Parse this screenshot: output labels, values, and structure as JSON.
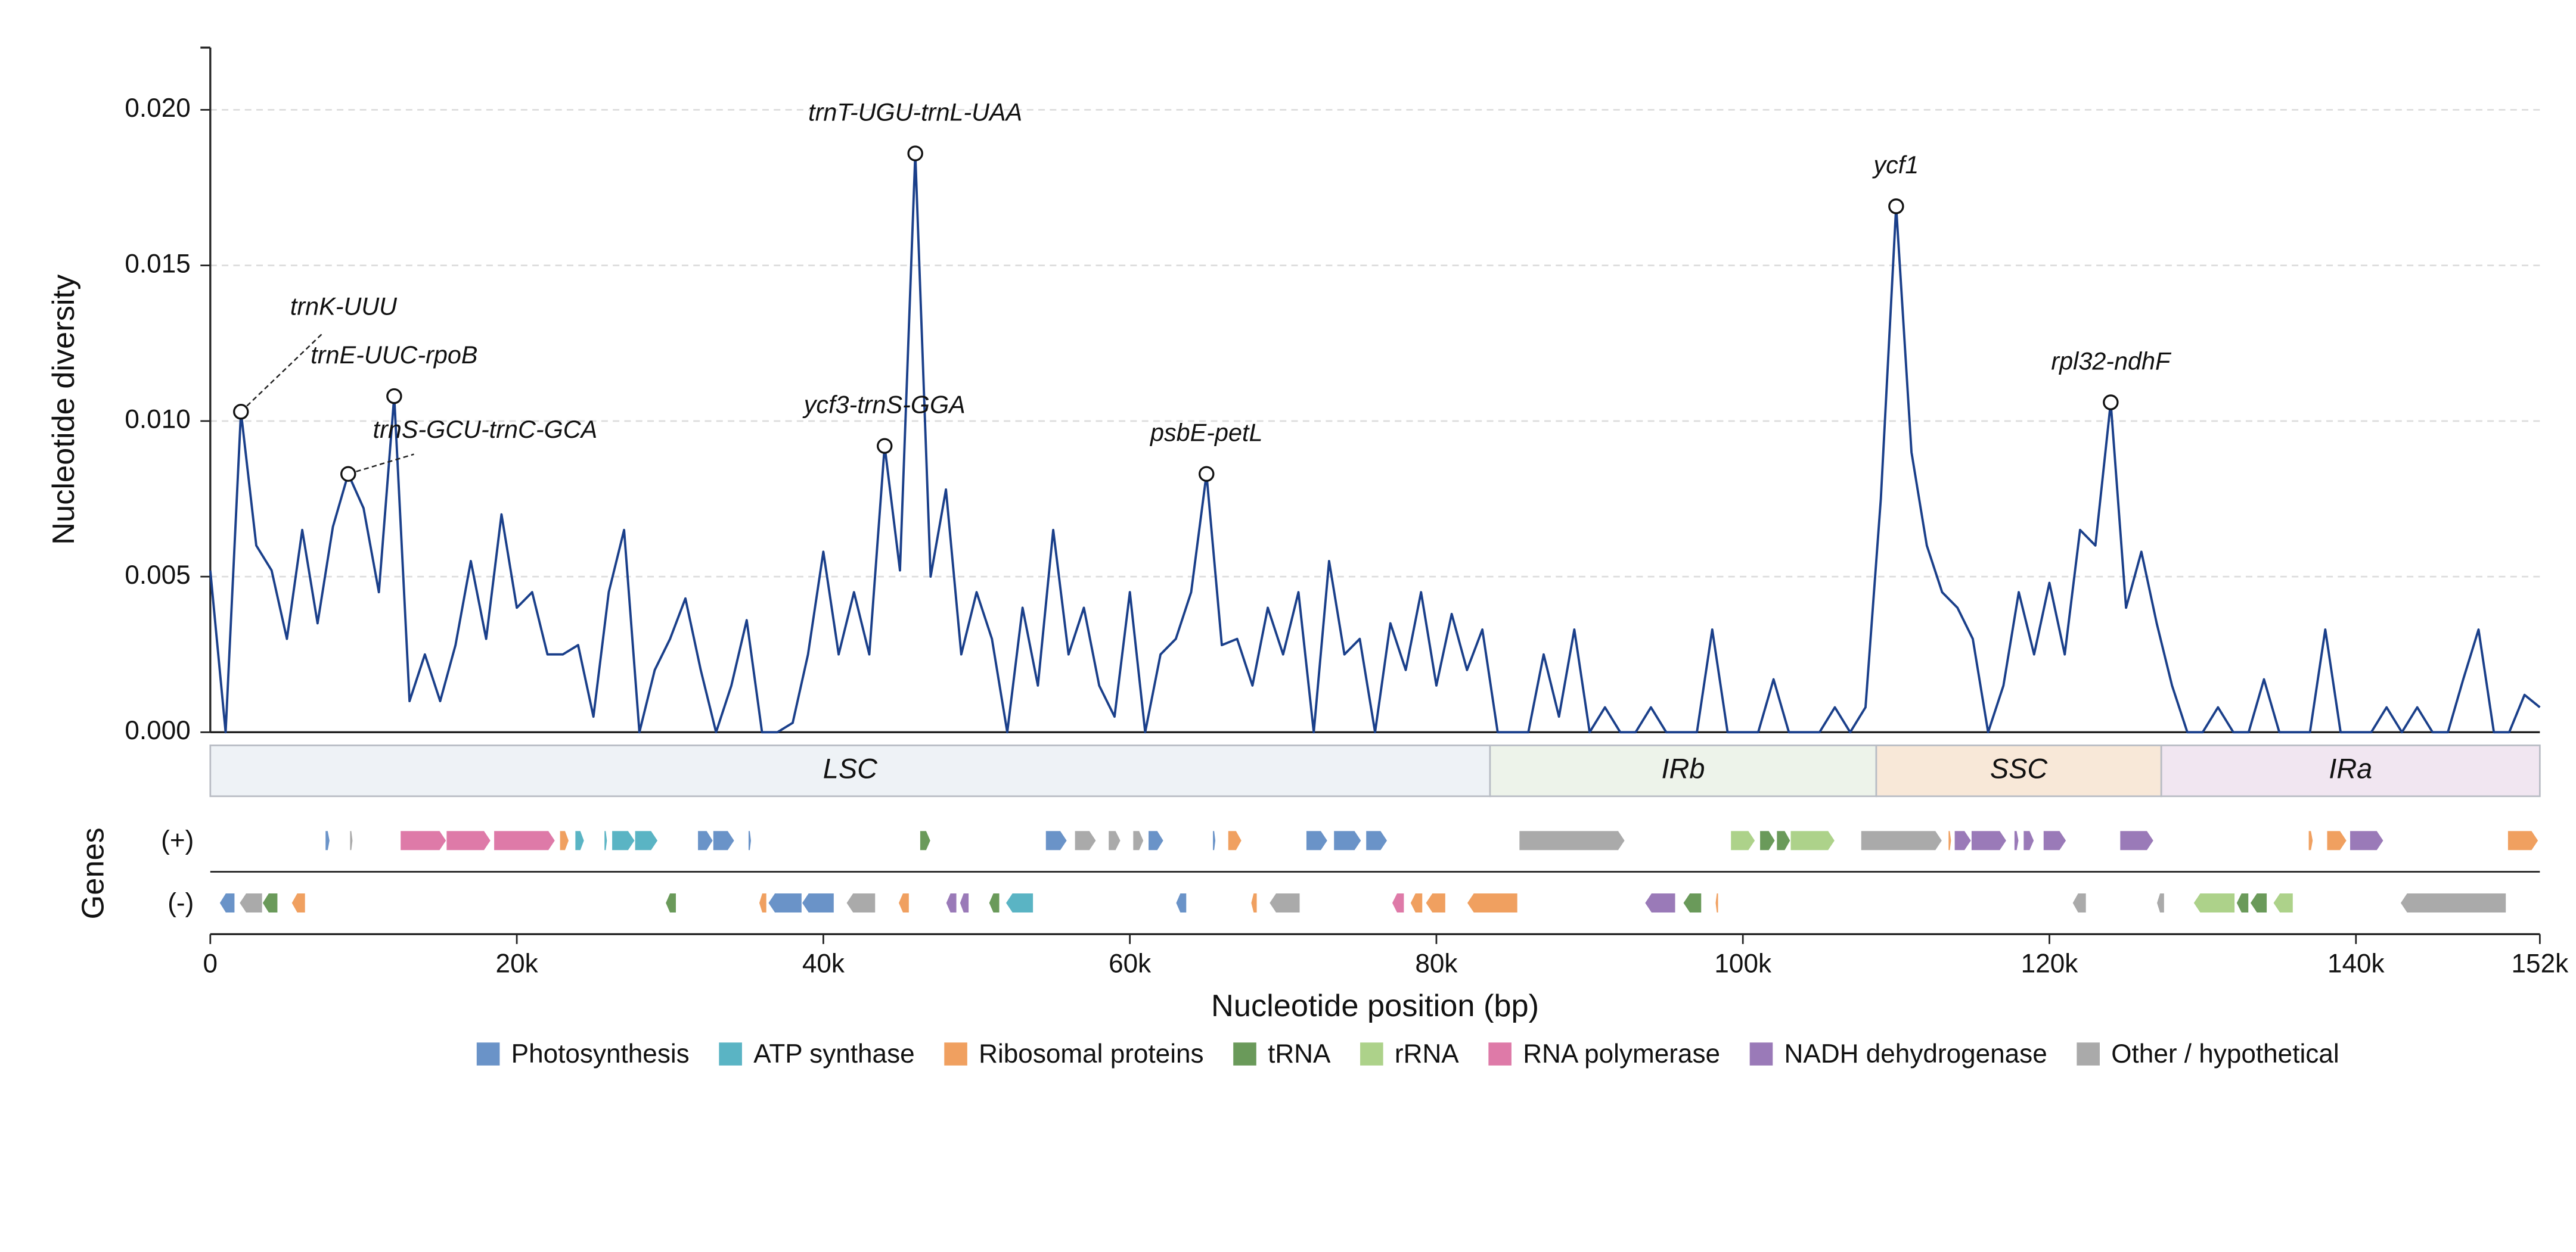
{
  "chart_data": {
    "type": "line",
    "ylabel": "Nucleotide diversity",
    "xlabel": "Nucleotide position (bp)",
    "genes_label": "Genes",
    "xlim": [
      0,
      152000
    ],
    "ylim": [
      0,
      0.022
    ],
    "xticks": [
      0,
      {
        "value": 20000,
        "label": "20k"
      },
      {
        "value": 40000,
        "label": "40k"
      },
      {
        "value": 60000,
        "label": "60k"
      },
      {
        "value": 80000,
        "label": "80k"
      },
      {
        "value": 100000,
        "label": "100k"
      },
      {
        "value": 120000,
        "label": "120k"
      },
      {
        "value": 140000,
        "label": "140k"
      },
      {
        "value": 152000,
        "label": "152k"
      }
    ],
    "yticks": [
      {
        "value": 0,
        "label": "0.000"
      },
      0.005,
      {
        "value": 0.01,
        "label": "0.010"
      },
      0.015,
      {
        "value": 0.02,
        "label": "0.020"
      }
    ],
    "grid": true,
    "x": [
      0,
      1000,
      2000,
      3000,
      4000,
      5000,
      6000,
      7000,
      8000,
      9000,
      10000,
      11000,
      12000,
      13000,
      14000,
      15000,
      16000,
      17000,
      18000,
      19000,
      20000,
      21000,
      22000,
      23000,
      24000,
      25000,
      26000,
      27000,
      28000,
      29000,
      30000,
      31000,
      32000,
      33000,
      34000,
      35000,
      36000,
      37000,
      38000,
      39000,
      40000,
      41000,
      42000,
      43000,
      44000,
      45000,
      46000,
      47000,
      48000,
      49000,
      50000,
      51000,
      52000,
      53000,
      54000,
      55000,
      56000,
      57000,
      58000,
      59000,
      60000,
      61000,
      62000,
      63000,
      64000,
      65000,
      66000,
      67000,
      68000,
      69000,
      70000,
      71000,
      72000,
      73000,
      74000,
      75000,
      76000,
      77000,
      78000,
      79000,
      80000,
      81000,
      82000,
      83000,
      84000,
      85000,
      86000,
      87000,
      88000,
      89000,
      90000,
      91000,
      92000,
      93000,
      94000,
      95000,
      96000,
      97000,
      98000,
      99000,
      100000,
      101000,
      102000,
      103000,
      104000,
      105000,
      106000,
      107000,
      108000,
      109000,
      110000,
      111000,
      112000,
      113000,
      114000,
      115000,
      116000,
      117000,
      118000,
      119000,
      120000,
      121000,
      122000,
      123000,
      124000,
      125000,
      126000,
      127000,
      128000,
      129000,
      130000,
      131000,
      132000,
      133000,
      134000,
      135000,
      136000,
      137000,
      138000,
      139000,
      140000,
      141000,
      142000,
      143000,
      144000,
      145000,
      146000,
      147000,
      148000,
      149000,
      150000,
      151000,
      152000
    ],
    "series": [
      {
        "color": "#1a3f8a",
        "values": [
          0.0052,
          0,
          0.0103,
          0.006,
          0.0052,
          0.003,
          0.0065,
          0.0035,
          0.0066,
          0.0083,
          0.0072,
          0.0045,
          0.0108,
          0.001,
          0.0025,
          0.001,
          0.0028,
          0.0055,
          0.003,
          0.007,
          0.004,
          0.0045,
          0.0025,
          0.0025,
          0.0028,
          0.0005,
          0.0045,
          0.0065,
          0,
          0.002,
          0.003,
          0.0043,
          0.002,
          0,
          0.0015,
          0.0036,
          0,
          0,
          0.0003,
          0.0025,
          0.0058,
          0.0025,
          0.0045,
          0.0025,
          0.0092,
          0.0052,
          0.0186,
          0.005,
          0.0078,
          0.0025,
          0.0045,
          0.003,
          0,
          0.004,
          0.0015,
          0.0065,
          0.0025,
          0.004,
          0.0015,
          0.0005,
          0.0045,
          0,
          0.0025,
          0.003,
          0.0045,
          0.0083,
          0.0028,
          0.003,
          0.0015,
          0.004,
          0.0025,
          0.0045,
          0,
          0.0055,
          0.0025,
          0.003,
          0,
          0.0035,
          0.002,
          0.0045,
          0.0015,
          0.0038,
          0.002,
          0.0033,
          0,
          0,
          0,
          0.0025,
          0.0005,
          0.0033,
          0,
          0.0008,
          0,
          0,
          0.0008,
          0,
          0,
          0,
          0.0033,
          0,
          0,
          0,
          0.0017,
          0,
          0,
          0,
          0.0008,
          0,
          0.0008,
          0.0075,
          0.0169,
          0.009,
          0.006,
          0.0045,
          0.004,
          0.003,
          0,
          0.0015,
          0.0045,
          0.0025,
          0.0048,
          0.0025,
          0.0065,
          0.006,
          0.0106,
          0.004,
          0.0058,
          0.0035,
          0.0015,
          0,
          0,
          0.0008,
          0,
          0,
          0.0017,
          0,
          0,
          0,
          0.0033,
          0,
          0,
          0,
          0.0008,
          0,
          0.0008,
          0,
          0,
          0.0017,
          0.0033,
          0,
          0,
          0.0012,
          0.0008
        ]
      }
    ],
    "annotations": [
      {
        "label": "trnK-UUU",
        "x": 2000,
        "y": 0.0103
      },
      {
        "label": "trnE-UUC-rpoB",
        "x": 12000,
        "y": 0.0108
      },
      {
        "label": "trnS-GCU-trnC-GCA",
        "x": 9000,
        "y": 0.0083
      },
      {
        "label": "ycf3-trnS-GGA",
        "x": 44000,
        "y": 0.0092
      },
      {
        "label": "trnT-UGU-trnL-UAA",
        "x": 46000,
        "y": 0.0186
      },
      {
        "label": "psbE-petL",
        "x": 65000,
        "y": 0.0083
      },
      {
        "label": "ycf1",
        "x": 110000,
        "y": 0.0169
      },
      {
        "label": "rpl32-ndhF",
        "x": 124000,
        "y": 0.0106
      }
    ],
    "regions": [
      {
        "name": "LSC",
        "start": 0,
        "end": 83500,
        "color": "#eef2f6"
      },
      {
        "name": "IRb",
        "start": 83500,
        "end": 108700,
        "color": "#edf3ea"
      },
      {
        "name": "SSC",
        "start": 108700,
        "end": 127300,
        "color": "#f8e8d8"
      },
      {
        "name": "IRa",
        "start": 127300,
        "end": 152000,
        "color": "#f1e6f1"
      }
    ],
    "strand_labels": [
      "(+)",
      "(-)"
    ],
    "gene_categories": [
      {
        "name": "Photosynthesis",
        "color": "#6a93c8"
      },
      {
        "name": "ATP synthase",
        "color": "#5ab4c4"
      },
      {
        "name": "Ribosomal proteins",
        "color": "#f0a060"
      },
      {
        "name": "tRNA",
        "color": "#6a9a5a"
      },
      {
        "name": "rRNA",
        "color": "#add28a"
      },
      {
        "name": "RNA polymerase",
        "color": "#de7aa8"
      },
      {
        "name": "NADH dehydrogenase",
        "color": "#9a7ab8"
      },
      {
        "name": "Other / hypothetical",
        "color": "#aaaaaa"
      }
    ],
    "genes_plus": [
      [
        7500,
        7800,
        0
      ],
      [
        9100,
        9300,
        7
      ],
      [
        12400,
        15400,
        5
      ],
      [
        15400,
        18300,
        5
      ],
      [
        18500,
        22500,
        5
      ],
      [
        22800,
        23400,
        2
      ],
      [
        23800,
        24400,
        1
      ],
      [
        25700,
        25900,
        1
      ],
      [
        26200,
        27700,
        1
      ],
      [
        27700,
        29200,
        1
      ],
      [
        31800,
        32800,
        0
      ],
      [
        32800,
        34200,
        0
      ],
      [
        35100,
        35300,
        0
      ],
      [
        46300,
        47000,
        3
      ],
      [
        54500,
        55900,
        0
      ],
      [
        56400,
        57800,
        7
      ],
      [
        58600,
        59400,
        7
      ],
      [
        60200,
        60900,
        7
      ],
      [
        61200,
        62200,
        0
      ],
      [
        65400,
        65600,
        0
      ],
      [
        66400,
        67300,
        2
      ],
      [
        71500,
        72900,
        0
      ],
      [
        73300,
        75100,
        0
      ],
      [
        75400,
        76800,
        0
      ],
      [
        85400,
        92300,
        7
      ],
      [
        99200,
        100800,
        4
      ],
      [
        101100,
        102100,
        3
      ],
      [
        102200,
        103100,
        3
      ],
      [
        103100,
        106000,
        4
      ],
      [
        107700,
        113000,
        7
      ],
      [
        113400,
        113600,
        2
      ],
      [
        113800,
        114900,
        6
      ],
      [
        114900,
        117200,
        6
      ],
      [
        117700,
        118000,
        6
      ],
      [
        118300,
        119000,
        6
      ],
      [
        119600,
        121100,
        6
      ],
      [
        124600,
        126800,
        6
      ],
      [
        136900,
        137200,
        2
      ],
      [
        138100,
        139400,
        2
      ],
      [
        139600,
        141800,
        6
      ],
      [
        149900,
        151900,
        2
      ]
    ],
    "genes_minus": [
      [
        600,
        1600,
        0
      ],
      [
        1900,
        3400,
        7
      ],
      [
        3400,
        4400,
        3
      ],
      [
        5300,
        6200,
        2
      ],
      [
        29700,
        30400,
        3
      ],
      [
        35800,
        36300,
        2
      ],
      [
        36400,
        38600,
        0
      ],
      [
        38600,
        40700,
        0
      ],
      [
        41500,
        43400,
        7
      ],
      [
        44900,
        45600,
        2
      ],
      [
        48000,
        48700,
        6
      ],
      [
        48900,
        49500,
        6
      ],
      [
        50800,
        51500,
        3
      ],
      [
        51900,
        53700,
        1
      ],
      [
        63000,
        63700,
        0
      ],
      [
        67900,
        68300,
        2
      ],
      [
        69100,
        71100,
        7
      ],
      [
        77100,
        77900,
        5
      ],
      [
        78300,
        79100,
        2
      ],
      [
        79300,
        80600,
        2
      ],
      [
        82000,
        85300,
        2
      ],
      [
        93600,
        95600,
        6
      ],
      [
        96100,
        97300,
        3
      ],
      [
        98200,
        98400,
        2
      ],
      [
        121500,
        122400,
        7
      ],
      [
        127000,
        127500,
        7
      ],
      [
        129400,
        132100,
        4
      ],
      [
        132200,
        133000,
        3
      ],
      [
        133100,
        134200,
        3
      ],
      [
        134600,
        135900,
        4
      ],
      [
        142900,
        149800,
        7
      ]
    ]
  }
}
